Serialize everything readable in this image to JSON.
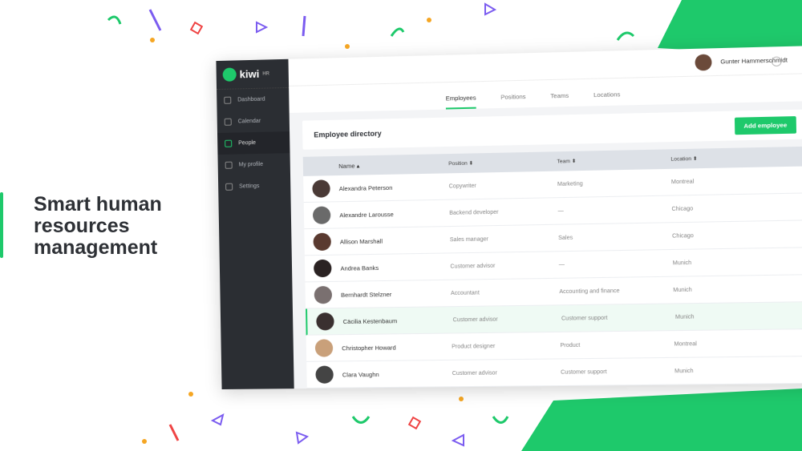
{
  "hero": {
    "title": "Smart human resources management"
  },
  "colors": {
    "brand": "#1ec96b",
    "sidebar": "#2b2e33"
  },
  "app": {
    "logo": "kiwi",
    "logo_sup": "HR",
    "sidebar": [
      {
        "label": "Dashboard",
        "icon": "grid-icon"
      },
      {
        "label": "Calendar",
        "icon": "calendar-icon"
      },
      {
        "label": "People",
        "icon": "people-icon",
        "active": true
      },
      {
        "label": "My profile",
        "icon": "user-icon"
      },
      {
        "label": "Settings",
        "icon": "sliders-icon"
      }
    ],
    "user": "Gunter Hammerschmidt",
    "tabs": [
      "Employees",
      "Positions",
      "Teams",
      "Locations"
    ],
    "directory_title": "Employee directory",
    "add_button": "Add employee",
    "columns": [
      "Name",
      "Position",
      "Team",
      "Location"
    ],
    "rows": [
      [
        "Alexandra Peterson",
        "Copywriter",
        "Marketing",
        "Montreal"
      ],
      [
        "Alexandre Larousse",
        "Backend developer",
        "—",
        "Chicago"
      ],
      [
        "Allison Marshall",
        "Sales manager",
        "Sales",
        "Chicago"
      ],
      [
        "Andrea Banks",
        "Customer advisor",
        "—",
        "Munich"
      ],
      [
        "Bernhardt Stelzner",
        "Accountant",
        "Accounting and finance",
        "Munich"
      ],
      [
        "Cäcilia Kestenbaum",
        "Customer advisor",
        "Customer support",
        "Munich"
      ],
      [
        "Christopher Howard",
        "Product designer",
        "Product",
        "Montreal"
      ],
      [
        "Clara Vaughn",
        "Customer advisor",
        "Customer support",
        "Munich"
      ]
    ]
  }
}
